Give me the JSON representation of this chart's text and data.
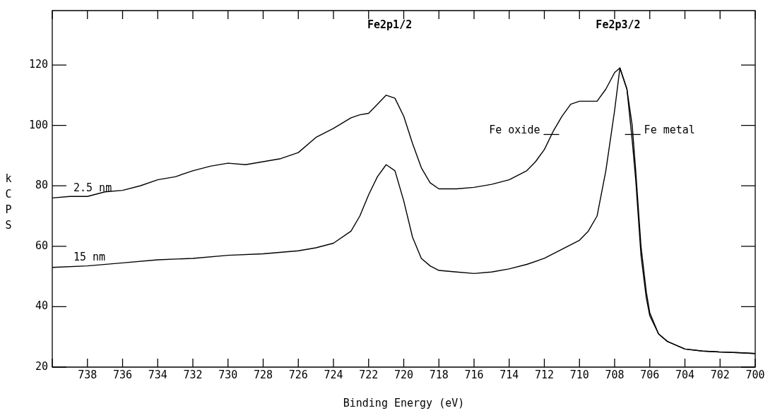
{
  "chart_data": {
    "type": "line",
    "xlabel": "Binding Energy (eV)",
    "ylabel": "kCPS",
    "xlim": [
      740,
      700
    ],
    "xticks": [
      {
        "value": 740,
        "label": null
      },
      738,
      736,
      734,
      732,
      730,
      728,
      726,
      724,
      722,
      720,
      718,
      716,
      714,
      712,
      710,
      708,
      706,
      704,
      702,
      700
    ],
    "ylim": [
      20,
      138
    ],
    "yticks": [
      20,
      40,
      60,
      80,
      100,
      120
    ],
    "grid": false,
    "legend": "left",
    "marker": "none",
    "line_style": "solid",
    "series": [
      {
        "name": "2.5 nm",
        "color": "#000000",
        "x": [
          740,
          739,
          738,
          737,
          736,
          735,
          734,
          733,
          732,
          731,
          730,
          729,
          728,
          727,
          726,
          725,
          724,
          723,
          722.5,
          722,
          721.5,
          721,
          720.5,
          720,
          719.5,
          719,
          718.5,
          718,
          717,
          716,
          715,
          714,
          713,
          712.5,
          712,
          711.5,
          711,
          710.5,
          710,
          709.5,
          709,
          708.5,
          708,
          707.7,
          707.3,
          707,
          706.8,
          706.5,
          706.2,
          706,
          705.5,
          705,
          704,
          703,
          702,
          701,
          700
        ],
        "values": [
          76,
          76.5,
          76.5,
          78,
          78.5,
          80,
          82,
          83,
          85,
          86.5,
          87.5,
          87,
          88,
          89,
          91,
          96,
          99,
          102.5,
          103.5,
          104,
          107,
          110,
          109,
          103,
          94,
          86,
          81,
          79,
          79,
          79.5,
          80.5,
          82,
          85,
          88,
          92,
          98,
          103,
          107,
          108,
          108,
          108,
          112,
          117.5,
          119,
          112,
          100,
          85,
          60,
          45,
          38,
          31,
          28.5,
          26,
          25.3,
          25,
          24.8,
          24.5
        ]
      },
      {
        "name": "15 nm",
        "color": "#000000",
        "x": [
          740,
          738,
          736,
          734,
          732,
          730,
          728,
          726,
          725,
          724,
          723,
          722.5,
          722,
          721.5,
          721,
          720.5,
          720,
          719.5,
          719,
          718.5,
          718,
          717,
          716,
          715,
          714,
          713,
          712,
          711,
          710,
          709.5,
          709,
          708.5,
          708,
          707.7,
          707.3,
          707,
          706.8,
          706.5,
          706.2,
          706,
          705.5,
          705,
          704,
          703,
          702,
          701,
          700
        ],
        "values": [
          53,
          53.5,
          54.5,
          55.5,
          56,
          57,
          57.5,
          58.5,
          59.5,
          61,
          65,
          70,
          77,
          83,
          87,
          85,
          75,
          63,
          56,
          53.5,
          52,
          51.5,
          51,
          51.5,
          52.5,
          54,
          56,
          59,
          62,
          65,
          70,
          85,
          105,
          119,
          112,
          95,
          82,
          57,
          43,
          37,
          31,
          28.5,
          26,
          25.3,
          25,
          24.8,
          24.5
        ]
      }
    ],
    "annotations": [
      "Fe2p1/2",
      "Fe2p3/2",
      {
        "text": "Fe oxide",
        "x": 711.6,
        "y": 97
      },
      {
        "text": "Fe metal",
        "x": 706.97,
        "y": 97
      }
    ]
  }
}
